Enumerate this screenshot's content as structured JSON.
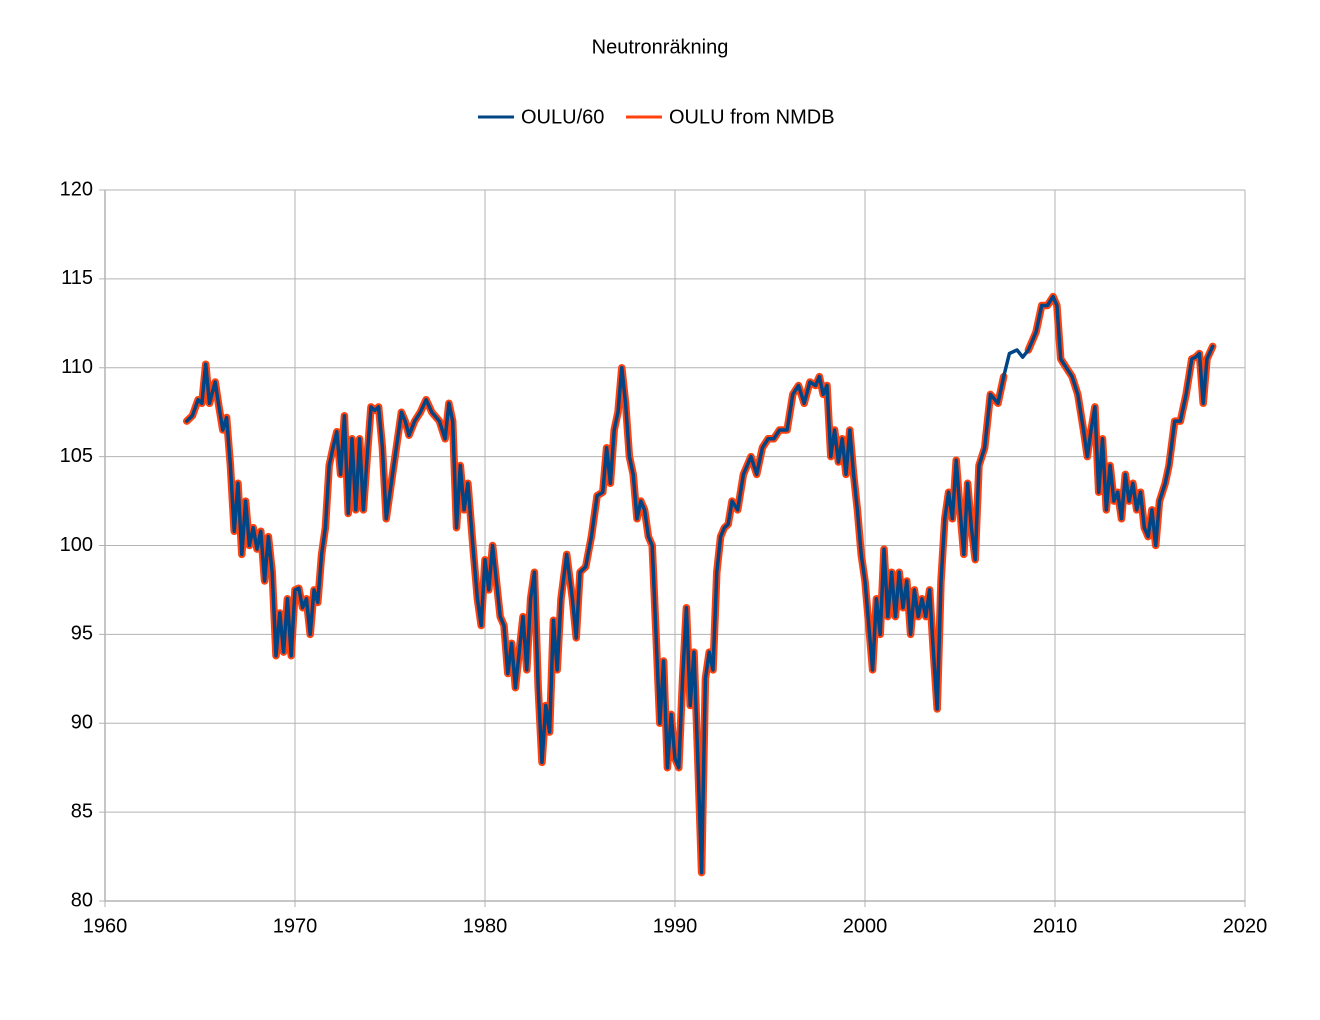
{
  "chart_data": {
    "type": "line",
    "title": "Neutronräkning",
    "x": [
      1964.3,
      1964.6,
      1964.9,
      1965.1,
      1965.3,
      1965.5,
      1965.8,
      1966.0,
      1966.2,
      1966.4,
      1966.6,
      1966.8,
      1967.0,
      1967.2,
      1967.4,
      1967.6,
      1967.8,
      1968.0,
      1968.2,
      1968.4,
      1968.6,
      1968.8,
      1969.0,
      1969.2,
      1969.4,
      1969.6,
      1969.8,
      1970.0,
      1970.2,
      1970.4,
      1970.6,
      1970.8,
      1971.0,
      1971.2,
      1971.4,
      1971.6,
      1971.8,
      1972.0,
      1972.2,
      1972.4,
      1972.6,
      1972.8,
      1973.0,
      1973.2,
      1973.4,
      1973.6,
      1973.8,
      1974.0,
      1974.2,
      1974.4,
      1974.6,
      1974.8,
      1975.0,
      1975.2,
      1975.6,
      1975.8,
      1976.0,
      1976.3,
      1976.6,
      1976.9,
      1977.2,
      1977.6,
      1977.9,
      1978.1,
      1978.3,
      1978.5,
      1978.7,
      1978.9,
      1979.1,
      1979.4,
      1979.6,
      1979.8,
      1980.0,
      1980.2,
      1980.4,
      1980.6,
      1980.8,
      1981.0,
      1981.2,
      1981.4,
      1981.6,
      1981.8,
      1982.0,
      1982.2,
      1982.4,
      1982.6,
      1982.8,
      1983.0,
      1983.2,
      1983.4,
      1983.6,
      1983.8,
      1984.0,
      1984.3,
      1984.6,
      1984.8,
      1985.0,
      1985.3,
      1985.6,
      1985.9,
      1986.2,
      1986.4,
      1986.6,
      1986.8,
      1987.0,
      1987.2,
      1987.4,
      1987.6,
      1987.8,
      1988.0,
      1988.2,
      1988.4,
      1988.6,
      1988.8,
      1989.0,
      1989.2,
      1989.4,
      1989.6,
      1989.8,
      1990.0,
      1990.2,
      1990.4,
      1990.6,
      1990.8,
      1991.0,
      1991.2,
      1991.4,
      1991.6,
      1991.8,
      1992.0,
      1992.2,
      1992.4,
      1992.6,
      1992.8,
      1993.0,
      1993.3,
      1993.6,
      1994.0,
      1994.3,
      1994.6,
      1994.9,
      1995.2,
      1995.5,
      1995.9,
      1996.2,
      1996.5,
      1996.8,
      1997.1,
      1997.4,
      1997.6,
      1997.8,
      1998.0,
      1998.2,
      1998.4,
      1998.6,
      1998.8,
      1999.0,
      1999.2,
      1999.4,
      1999.6,
      1999.8,
      2000.0,
      2000.2,
      2000.4,
      2000.6,
      2000.8,
      2001.0,
      2001.2,
      2001.4,
      2001.6,
      2001.8,
      2002.0,
      2002.2,
      2002.4,
      2002.6,
      2002.8,
      2003.0,
      2003.2,
      2003.4,
      2003.6,
      2003.8,
      2004.0,
      2004.2,
      2004.4,
      2004.6,
      2004.8,
      2005.0,
      2005.2,
      2005.4,
      2005.6,
      2005.8,
      2006.0,
      2006.3,
      2006.6,
      2007.0,
      2007.3,
      2007.6,
      2008.0,
      2008.3,
      2008.6,
      2009.0,
      2009.3,
      2009.6,
      2009.9,
      2010.1,
      2010.3,
      2010.6,
      2010.9,
      2011.2,
      2011.5,
      2011.7,
      2011.9,
      2012.1,
      2012.3,
      2012.5,
      2012.7,
      2012.9,
      2013.1,
      2013.3,
      2013.5,
      2013.7,
      2013.9,
      2014.1,
      2014.3,
      2014.5,
      2014.7,
      2014.9,
      2015.1,
      2015.3,
      2015.5,
      2015.8,
      2016.0,
      2016.3,
      2016.6,
      2016.9,
      2017.2,
      2017.4,
      2017.6,
      2017.8,
      2018.0,
      2018.3
    ],
    "series": [
      {
        "name": "OULU/60",
        "color": "#004586",
        "values": [
          107.0,
          107.3,
          108.2,
          108.0,
          110.2,
          108.0,
          109.2,
          107.8,
          106.5,
          107.2,
          104.5,
          100.8,
          103.5,
          99.5,
          102.5,
          100.0,
          101.0,
          99.8,
          100.8,
          98.0,
          100.5,
          98.5,
          93.8,
          96.2,
          94.0,
          97.0,
          93.8,
          97.5,
          97.6,
          96.5,
          97.0,
          95.0,
          97.5,
          96.8,
          99.5,
          101.0,
          104.5,
          105.5,
          106.4,
          104.0,
          107.3,
          101.8,
          106.0,
          102.0,
          106.0,
          102.0,
          105.0,
          107.8,
          107.6,
          107.8,
          105.5,
          101.5,
          103.0,
          104.5,
          107.5,
          107.0,
          106.2,
          107.0,
          107.5,
          108.2,
          107.5,
          107.0,
          106.0,
          108.0,
          107.0,
          101.0,
          104.5,
          102.0,
          103.5,
          99.5,
          97.0,
          95.5,
          99.2,
          97.5,
          100.0,
          98.0,
          96.0,
          95.5,
          92.8,
          94.5,
          92.0,
          94.0,
          96.0,
          93.0,
          97.0,
          98.5,
          92.0,
          87.8,
          91.0,
          89.5,
          95.8,
          93.0,
          97.0,
          99.5,
          97.0,
          94.8,
          98.5,
          98.8,
          100.5,
          102.8,
          103.0,
          105.5,
          103.5,
          106.5,
          107.5,
          110.0,
          108.0,
          105.0,
          104.0,
          101.5,
          102.5,
          102.0,
          100.5,
          100.0,
          95.0,
          90.0,
          93.5,
          87.5,
          90.5,
          88.0,
          87.5,
          92.5,
          96.5,
          91.0,
          94.0,
          88.0,
          81.6,
          92.5,
          94.0,
          93.0,
          98.5,
          100.5,
          101.0,
          101.2,
          102.5,
          102.0,
          104.0,
          105.0,
          104.0,
          105.5,
          106.0,
          106.0,
          106.5,
          106.5,
          108.5,
          109.0,
          108.0,
          109.2,
          109.0,
          109.5,
          108.5,
          109.0,
          105.0,
          106.5,
          104.7,
          106.0,
          104.0,
          106.5,
          104.0,
          102.0,
          99.5,
          98.0,
          95.5,
          93.0,
          97.0,
          95.0,
          99.8,
          96.0,
          98.5,
          96.0,
          98.5,
          96.5,
          98.0,
          95.0,
          97.5,
          96.0,
          97.0,
          96.0,
          97.5,
          94.0,
          90.8,
          98.0,
          101.5,
          103.0,
          101.5,
          104.8,
          102.0,
          99.5,
          103.5,
          101.0,
          99.2,
          104.5,
          105.5,
          108.5,
          108.0,
          109.5,
          110.8,
          111.0,
          110.6,
          111.0,
          112.0,
          113.5,
          113.5,
          114.0,
          113.5,
          110.5,
          110.0,
          109.5,
          108.5,
          106.5,
          105.0,
          106.5,
          107.8,
          103.0,
          106.0,
          102.0,
          104.5,
          102.5,
          103.0,
          101.5,
          104.0,
          102.5,
          103.5,
          102.0,
          103.0,
          101.0,
          100.5,
          102.0,
          100.0,
          102.5,
          103.5,
          104.5,
          107.0,
          107.0,
          108.5,
          110.5,
          110.6,
          110.8,
          108.0,
          110.5,
          111.2
        ]
      },
      {
        "name": "OULU from NMDB",
        "color": "#ff420e",
        "values": [
          107.0,
          107.3,
          108.2,
          108.0,
          110.2,
          108.0,
          109.2,
          107.8,
          106.5,
          107.2,
          104.5,
          100.8,
          103.5,
          99.5,
          102.5,
          100.0,
          101.0,
          99.8,
          100.8,
          98.0,
          100.5,
          98.5,
          93.8,
          96.2,
          94.0,
          97.0,
          93.8,
          97.5,
          97.6,
          96.5,
          97.0,
          95.0,
          97.5,
          96.8,
          99.5,
          101.0,
          104.5,
          105.5,
          106.4,
          104.0,
          107.3,
          101.8,
          106.0,
          102.0,
          106.0,
          102.0,
          105.0,
          107.8,
          107.6,
          107.8,
          105.5,
          101.5,
          103.0,
          104.5,
          107.5,
          107.0,
          106.2,
          107.0,
          107.5,
          108.2,
          107.5,
          107.0,
          106.0,
          108.0,
          107.0,
          101.0,
          104.5,
          102.0,
          103.5,
          99.5,
          97.0,
          95.5,
          99.2,
          97.5,
          100.0,
          98.0,
          96.0,
          95.5,
          92.8,
          94.5,
          92.0,
          94.0,
          96.0,
          93.0,
          97.0,
          98.5,
          92.0,
          87.8,
          91.0,
          89.5,
          95.8,
          93.0,
          97.0,
          99.5,
          97.0,
          94.8,
          98.5,
          98.8,
          100.5,
          102.8,
          103.0,
          105.5,
          103.5,
          106.5,
          107.5,
          110.0,
          108.0,
          105.0,
          104.0,
          101.5,
          102.5,
          102.0,
          100.5,
          100.0,
          95.0,
          90.0,
          93.5,
          87.5,
          90.5,
          88.0,
          87.5,
          92.5,
          96.5,
          91.0,
          94.0,
          88.0,
          81.6,
          92.5,
          94.0,
          93.0,
          98.5,
          100.5,
          101.0,
          101.2,
          102.5,
          102.0,
          104.0,
          105.0,
          104.0,
          105.5,
          106.0,
          106.0,
          106.5,
          106.5,
          108.5,
          109.0,
          108.0,
          109.2,
          109.0,
          109.5,
          108.5,
          109.0,
          105.0,
          106.5,
          104.7,
          106.0,
          104.0,
          106.5,
          104.0,
          102.0,
          99.5,
          98.0,
          95.5,
          93.0,
          97.0,
          95.0,
          99.8,
          96.0,
          98.5,
          96.0,
          98.5,
          96.5,
          98.0,
          95.0,
          97.5,
          96.0,
          97.0,
          96.0,
          97.5,
          94.0,
          90.8,
          98.0,
          101.5,
          103.0,
          101.5,
          104.8,
          102.0,
          99.5,
          103.5,
          101.0,
          99.2,
          104.5,
          105.5,
          108.5,
          108.0,
          109.5,
          null,
          null,
          null,
          111.0,
          112.0,
          113.5,
          113.5,
          114.0,
          113.5,
          110.5,
          110.0,
          109.5,
          108.5,
          106.5,
          105.0,
          106.5,
          107.8,
          103.0,
          106.0,
          102.0,
          104.5,
          102.5,
          103.0,
          101.5,
          104.0,
          102.5,
          103.5,
          102.0,
          103.0,
          101.0,
          100.5,
          102.0,
          100.0,
          102.5,
          103.5,
          104.5,
          107.0,
          107.0,
          108.5,
          110.5,
          110.6,
          110.8,
          108.0,
          110.5,
          111.2
        ]
      }
    ],
    "xlim": [
      1960,
      2020
    ],
    "xticks": [
      1960,
      1970,
      1980,
      1990,
      2000,
      2010,
      2020
    ],
    "ylim": [
      80,
      120
    ],
    "yticks": [
      80,
      85,
      90,
      95,
      100,
      105,
      110,
      115,
      120
    ],
    "grid": true
  }
}
